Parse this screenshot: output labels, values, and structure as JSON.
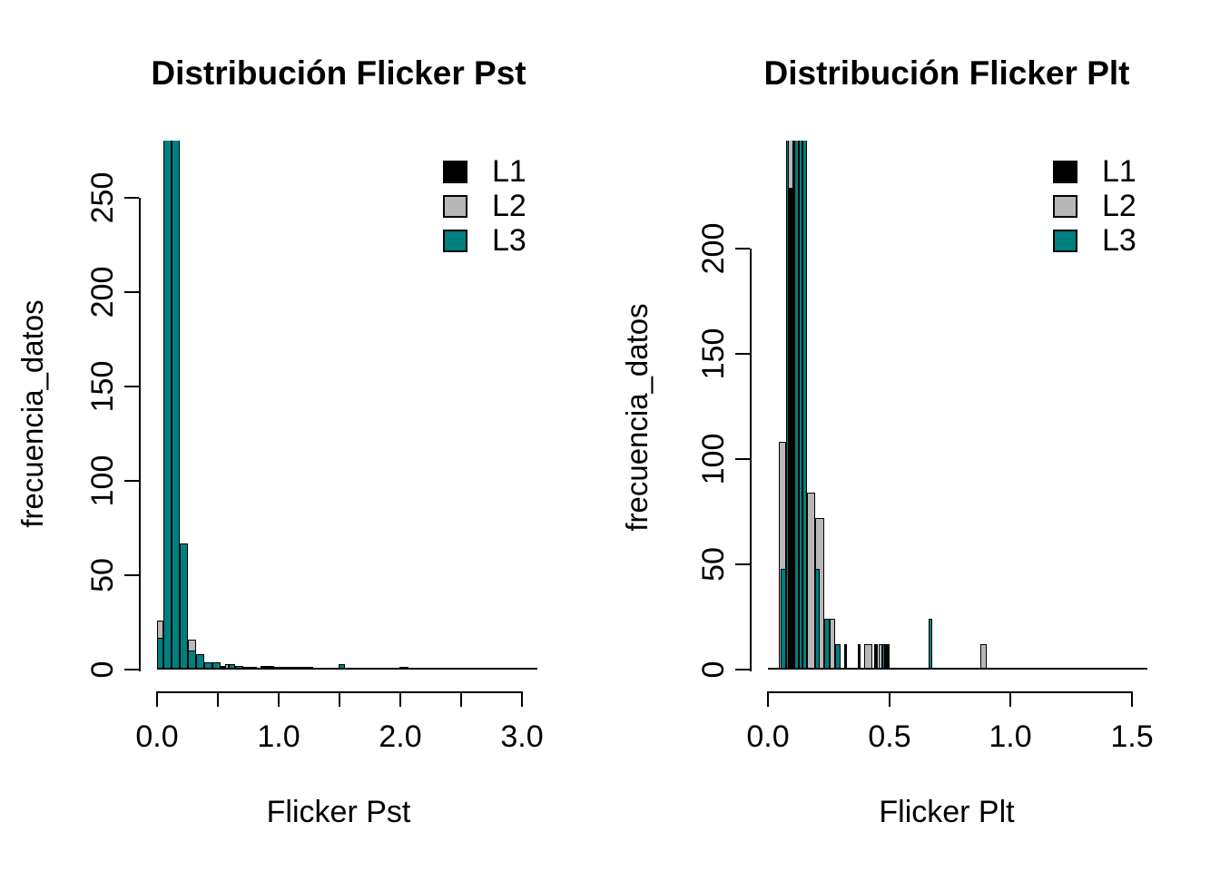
{
  "figure": {
    "background": "#ffffff"
  },
  "series_colors": {
    "L1": "#000000",
    "L2": "#b8b8b8",
    "L3": "#007f7f"
  },
  "chart_data": [
    {
      "type": "histogram",
      "title": "Distribución Flicker Pst",
      "xlabel": "Flicker Pst",
      "ylabel": "frecuencia_datos",
      "xlim": [
        0,
        3.0
      ],
      "ylim": [
        0,
        250
      ],
      "grid": false,
      "legend_position": "top-right-inside",
      "x_ticks": [
        {
          "value": 0.0,
          "label": "0.0"
        },
        {
          "value": 0.5,
          "label": ""
        },
        {
          "value": 1.0,
          "label": "1.0"
        },
        {
          "value": 1.5,
          "label": ""
        },
        {
          "value": 2.0,
          "label": "2.0"
        },
        {
          "value": 2.5,
          "label": ""
        },
        {
          "value": 3.0,
          "label": "3.0"
        }
      ],
      "y_ticks": [
        {
          "value": 0,
          "label": "0"
        },
        {
          "value": 50,
          "label": "50"
        },
        {
          "value": 100,
          "label": "100"
        },
        {
          "value": 150,
          "label": "150"
        },
        {
          "value": 200,
          "label": "200"
        },
        {
          "value": 250,
          "label": "250"
        }
      ],
      "legend": [
        {
          "label": "L1",
          "series": "L1"
        },
        {
          "label": "L2",
          "series": "L2"
        },
        {
          "label": "L3",
          "series": "L3"
        }
      ],
      "zero_line_extent": [
        0,
        3.125
      ],
      "clipped_note": "bars with count=null are clipped at the top of the plot region (exceed 250)",
      "bars": [
        [
          0.0,
          0.052,
          26,
          "L2"
        ],
        [
          0.0,
          0.052,
          17,
          "L3"
        ],
        [
          0.052,
          0.119,
          null,
          "L3"
        ],
        [
          0.119,
          0.187,
          null,
          "L3"
        ],
        [
          0.187,
          0.254,
          67,
          "L3"
        ],
        [
          0.254,
          0.321,
          16,
          "L2"
        ],
        [
          0.254,
          0.321,
          10,
          "L3"
        ],
        [
          0.321,
          0.388,
          8,
          "L3"
        ],
        [
          0.388,
          0.455,
          4,
          "L3"
        ],
        [
          0.455,
          0.522,
          4,
          "L3"
        ],
        [
          0.522,
          0.56,
          2,
          "L1"
        ],
        [
          0.56,
          0.59,
          3,
          "L2"
        ],
        [
          0.59,
          0.642,
          3,
          "L3"
        ],
        [
          0.642,
          0.709,
          2,
          "L3"
        ],
        [
          0.709,
          0.82,
          1.5,
          "L1"
        ],
        [
          0.85,
          0.96,
          2,
          "L1"
        ],
        [
          0.96,
          1.28,
          1.5,
          "L1"
        ],
        [
          1.49,
          1.545,
          3,
          "L3"
        ],
        [
          1.99,
          2.07,
          1.5,
          "L1"
        ]
      ]
    },
    {
      "type": "histogram",
      "title": "Distribución Flicker Plt",
      "xlabel": "Flicker Plt",
      "ylabel": "frecuencia_datos",
      "xlim": [
        0,
        1.5
      ],
      "ylim": [
        0,
        200
      ],
      "grid": false,
      "legend_position": "top-right-inside",
      "x_ticks": [
        {
          "value": 0.0,
          "label": "0.0"
        },
        {
          "value": 0.5,
          "label": "0.5"
        },
        {
          "value": 1.0,
          "label": "1.0"
        },
        {
          "value": 1.5,
          "label": "1.5"
        }
      ],
      "y_ticks": [
        {
          "value": 0,
          "label": "0"
        },
        {
          "value": 50,
          "label": "50"
        },
        {
          "value": 100,
          "label": "100"
        },
        {
          "value": 150,
          "label": "150"
        },
        {
          "value": 200,
          "label": "200"
        }
      ],
      "legend": [
        {
          "label": "L1",
          "series": "L1"
        },
        {
          "label": "L2",
          "series": "L2"
        },
        {
          "label": "L3",
          "series": "L3"
        }
      ],
      "zero_line_extent": [
        0,
        1.565
      ],
      "clipped_note": "bars with count=null are clipped at the top of the plot region (exceed 200)",
      "bars": [
        [
          0.045,
          0.075,
          108,
          "L2"
        ],
        [
          0.052,
          0.075,
          48,
          "L3"
        ],
        [
          0.075,
          0.092,
          null,
          "L3"
        ],
        [
          0.092,
          0.109,
          null,
          "L3"
        ],
        [
          0.109,
          0.127,
          null,
          "L3"
        ],
        [
          0.083,
          0.104,
          null,
          "L2"
        ],
        [
          0.086,
          0.101,
          229,
          "L1"
        ],
        [
          0.127,
          0.144,
          null,
          "L3"
        ],
        [
          0.144,
          0.161,
          null,
          "L3"
        ],
        [
          0.161,
          0.196,
          84,
          "L2"
        ],
        [
          0.196,
          0.233,
          72,
          "L2"
        ],
        [
          0.196,
          0.213,
          48,
          "L3"
        ],
        [
          0.233,
          0.254,
          24,
          "L3"
        ],
        [
          0.254,
          0.277,
          24,
          "L2"
        ],
        [
          0.277,
          0.299,
          12,
          "L3"
        ],
        [
          0.314,
          0.327,
          12,
          "L1"
        ],
        [
          0.37,
          0.383,
          12,
          "L1"
        ],
        [
          0.395,
          0.432,
          12,
          "L2"
        ],
        [
          0.439,
          0.452,
          12,
          "L1"
        ],
        [
          0.455,
          0.47,
          12,
          "L2"
        ],
        [
          0.472,
          0.481,
          12,
          "L3"
        ],
        [
          0.483,
          0.501,
          12,
          "L1"
        ],
        [
          0.663,
          0.678,
          24,
          "L3"
        ],
        [
          0.875,
          0.9,
          12,
          "L2"
        ]
      ]
    }
  ]
}
